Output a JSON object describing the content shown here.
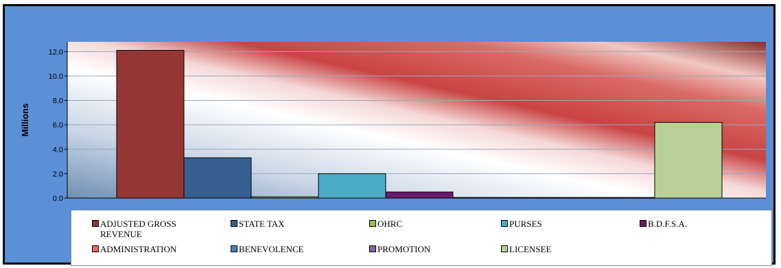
{
  "chart_data": {
    "type": "bar",
    "ylabel": "Millions",
    "ylim": [
      0,
      12.8
    ],
    "yticks": [
      "0.0",
      "2.0",
      "4.0",
      "6.0",
      "8.0",
      "10.0",
      "12.0"
    ],
    "grid": true,
    "legend_position": "bottom",
    "categories": [
      "ADJUSTED GROSS REVENUE",
      "STATE TAX",
      "OHRC",
      "PURSES",
      "B.D.F.S.A.",
      "ADMINISTRATION",
      "BENEVOLENCE",
      "PROMOTION",
      "LICENSEE"
    ],
    "values": [
      12.1,
      3.3,
      0.1,
      2.0,
      0.5,
      0.05,
      0.05,
      0.05,
      6.2
    ],
    "colors": [
      "#953735",
      "#366092",
      "#9bbb59",
      "#4bacc6",
      "#6a1a6a",
      "#e46c6c",
      "#4f81bd",
      "#8064a2",
      "#b8d095"
    ]
  },
  "legend": [
    {
      "label": "ADJUSTED GROSS REVENUE",
      "color": "#953735"
    },
    {
      "label": "STATE TAX",
      "color": "#366092"
    },
    {
      "label": "OHRC",
      "color": "#9bbb59"
    },
    {
      "label": "PURSES",
      "color": "#4bacc6"
    },
    {
      "label": "B.D.F.S.A.",
      "color": "#6a1a6a"
    },
    {
      "label": "ADMINISTRATION",
      "color": "#e46c6c"
    },
    {
      "label": "BENEVOLENCE",
      "color": "#4f81bd"
    },
    {
      "label": "PROMOTION",
      "color": "#8064a2"
    },
    {
      "label": "LICENSEE",
      "color": "#b8d095"
    }
  ]
}
